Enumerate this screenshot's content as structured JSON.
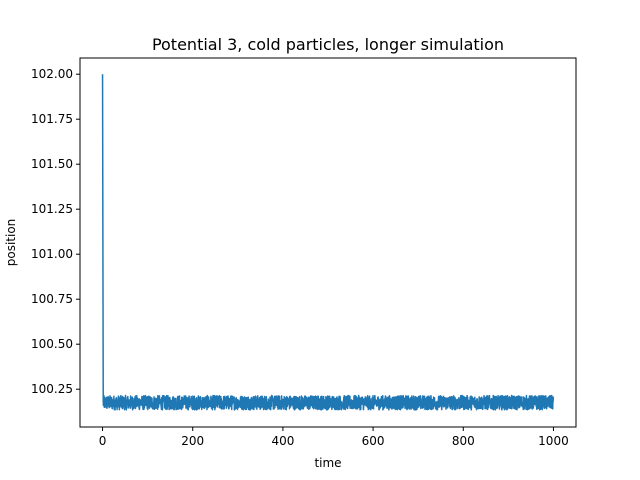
{
  "chart_data": {
    "type": "line",
    "title": "Potential 3, cold particles, longer simulation",
    "xlabel": "time",
    "ylabel": "position",
    "xlim": [
      -50,
      1050
    ],
    "ylim": [
      100.04,
      102.09
    ],
    "x_ticks": [
      0,
      200,
      400,
      600,
      800,
      1000
    ],
    "x_tick_labels": [
      "0",
      "200",
      "400",
      "600",
      "800",
      "1000"
    ],
    "y_ticks": [
      100.25,
      100.5,
      100.75,
      101.0,
      101.25,
      101.5,
      101.75,
      102.0
    ],
    "y_tick_labels": [
      "100.25",
      "100.50",
      "100.75",
      "101.00",
      "101.25",
      "101.50",
      "101.75",
      "102.00"
    ],
    "grid": false,
    "legend": "none",
    "series": [
      {
        "color": "#1f77b4",
        "initial_value": 102.0,
        "initial_time": 0,
        "drop_time": 1.5,
        "steady_mean": 100.175,
        "steady_min": 100.14,
        "steady_max": 100.22,
        "t_end": 1000
      }
    ]
  }
}
